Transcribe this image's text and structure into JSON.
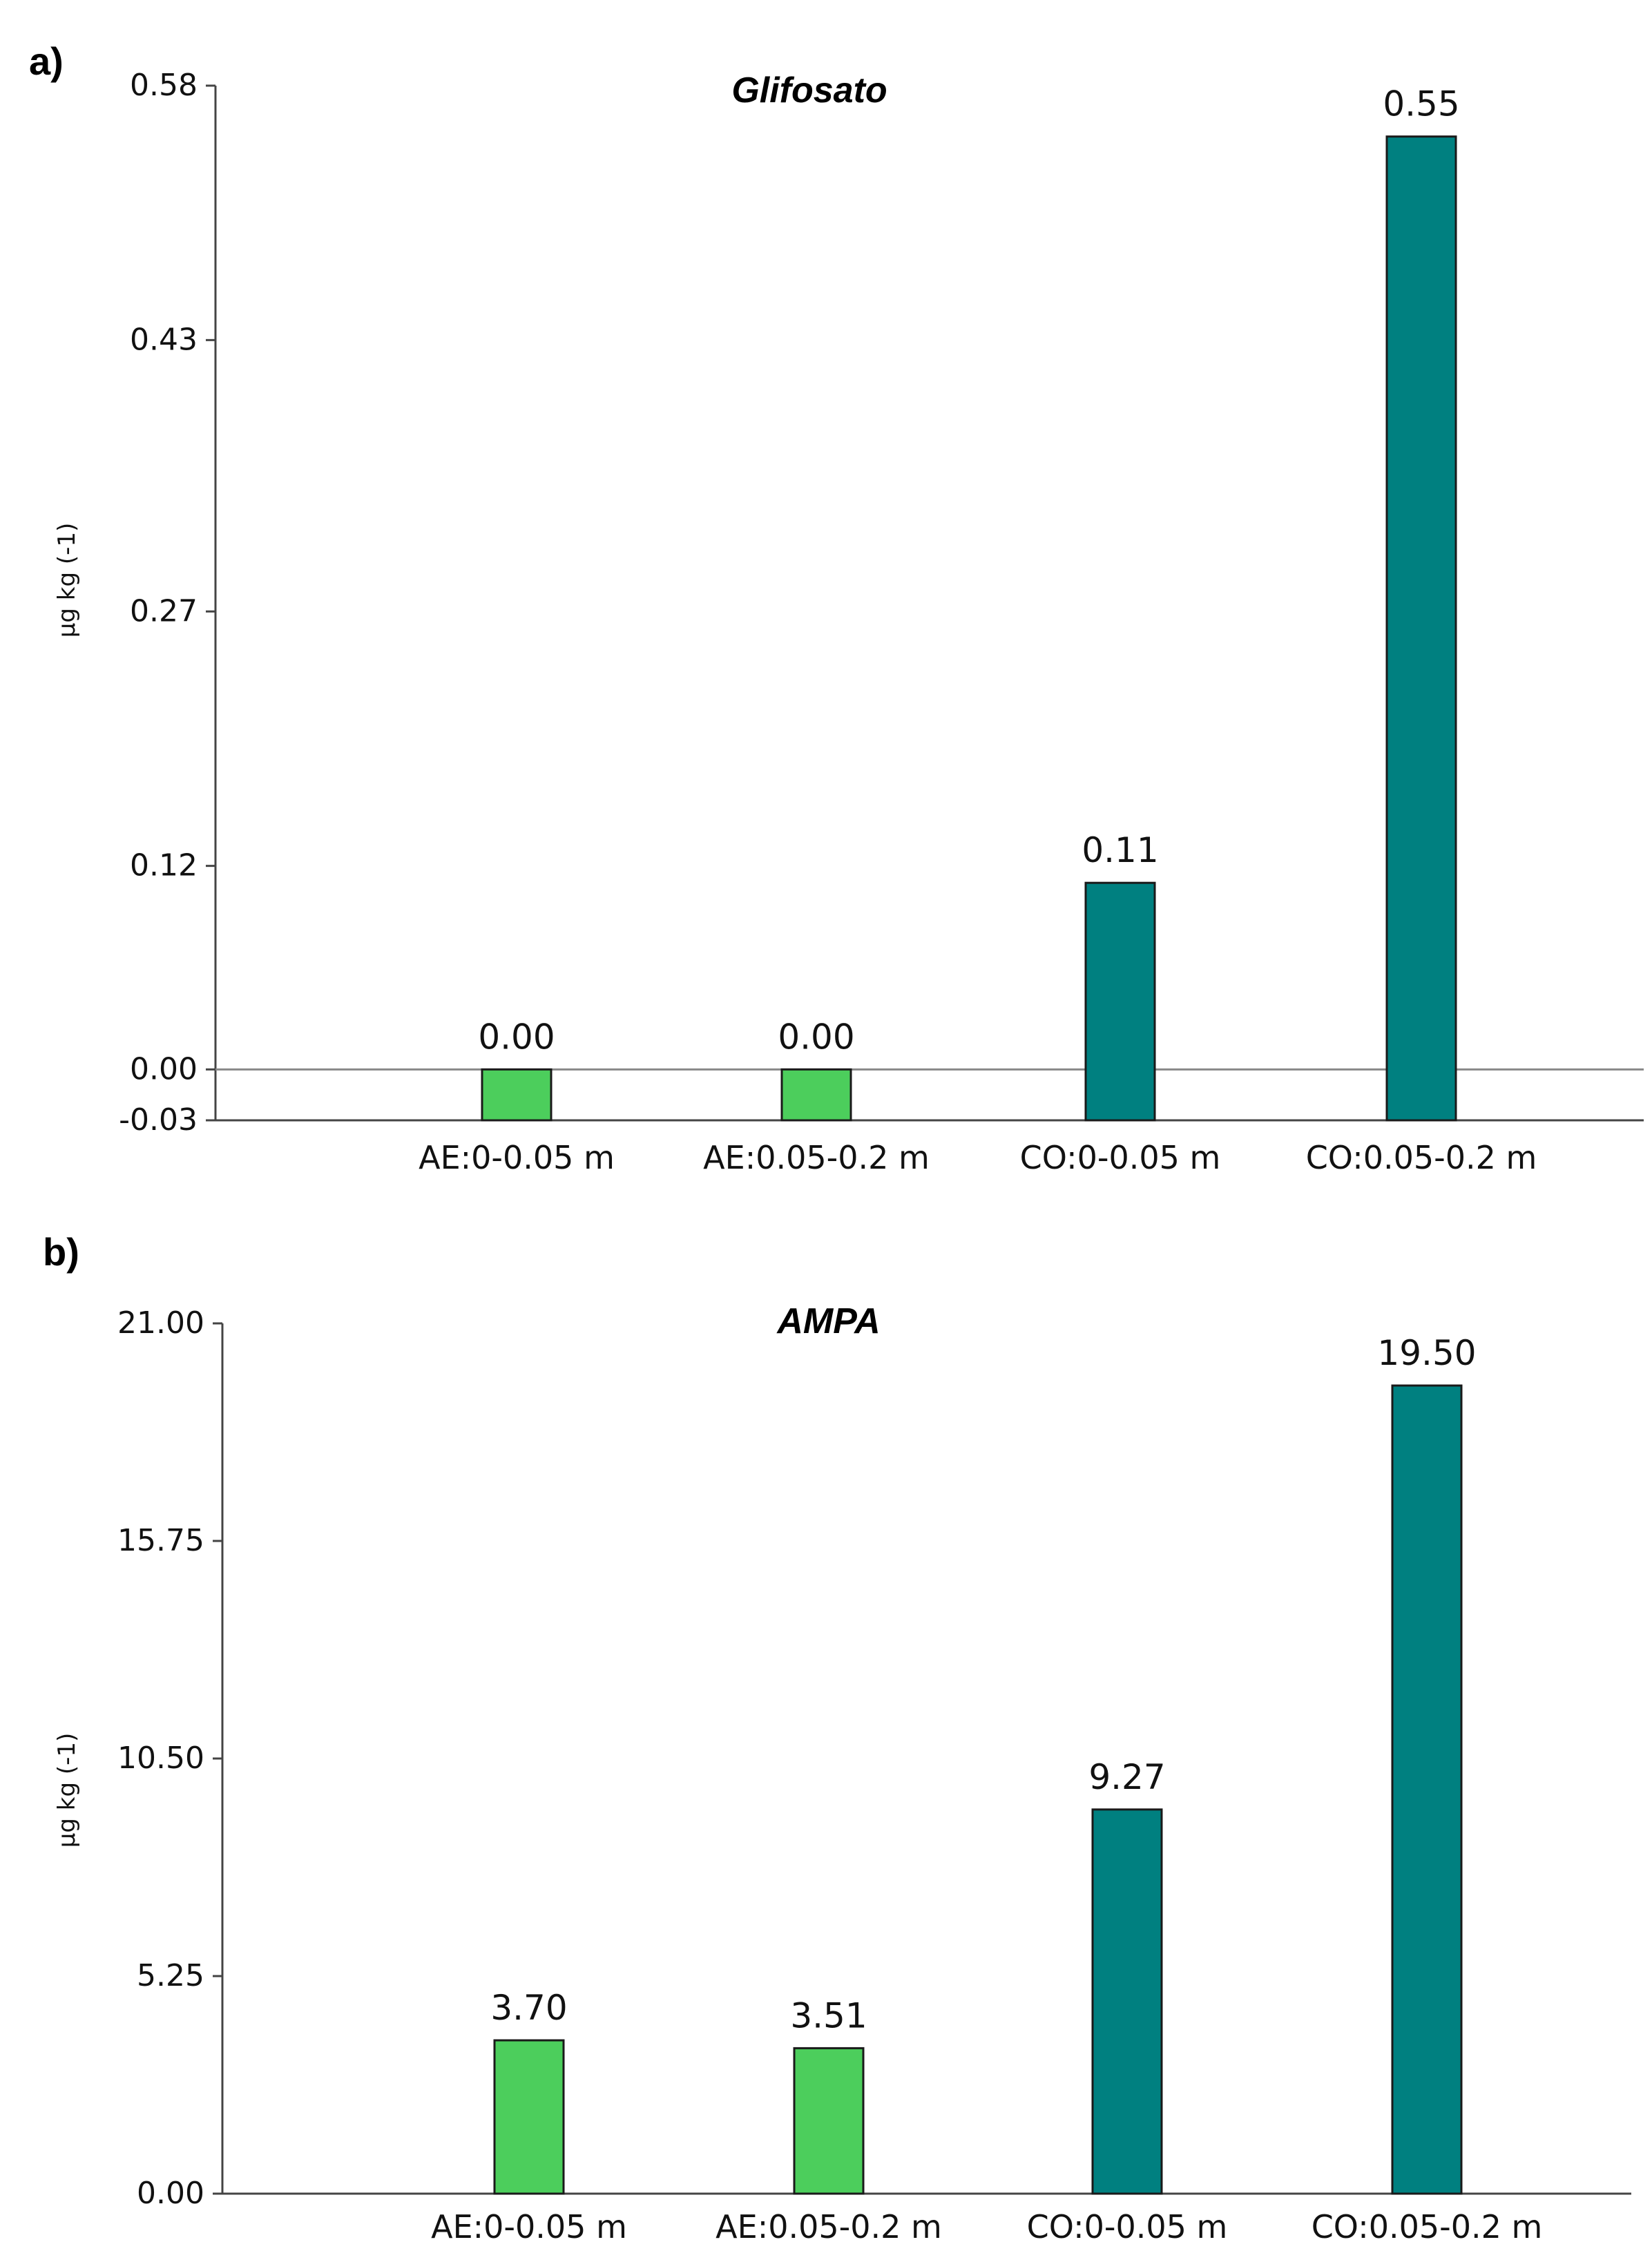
{
  "chart_data": [
    {
      "type": "bar",
      "panel_label": "a)",
      "title": "Glifosato",
      "ylabel": "µg kg (-1)",
      "xlabel": "",
      "categories": [
        "AE:0-0.05 m",
        "AE:0.05-0.2 m",
        "CO:0-0.05 m",
        "CO:0.05-0.2 m"
      ],
      "values": [
        0.0,
        0.0,
        0.11,
        0.55
      ],
      "value_labels": [
        "0.00",
        "0.00",
        "0.11",
        "0.55"
      ],
      "bar_colors": [
        "#4cce5c",
        "#4cce5c",
        "#008080",
        "#008080"
      ],
      "yticks": [
        -0.03,
        0.0,
        0.12,
        0.27,
        0.43,
        0.58
      ],
      "ytick_labels": [
        "-0.03",
        "0.00",
        "0.12",
        "0.27",
        "0.43",
        "0.58"
      ],
      "ylim": [
        -0.03,
        0.58
      ],
      "zero_line": true,
      "grid": false,
      "legend": "none"
    },
    {
      "type": "bar",
      "panel_label": "b)",
      "title": "AMPA",
      "ylabel": "µg kg (-1)",
      "xlabel": "",
      "categories": [
        "AE:0-0.05 m",
        "AE:0.05-0.2 m",
        "CO:0-0.05 m",
        "CO:0.05-0.2 m"
      ],
      "values": [
        3.7,
        3.51,
        9.27,
        19.5
      ],
      "value_labels": [
        "3.70",
        "3.51",
        "9.27",
        "19.50"
      ],
      "bar_colors": [
        "#4cce5c",
        "#4cce5c",
        "#008080",
        "#008080"
      ],
      "yticks": [
        0.0,
        5.25,
        10.5,
        15.75,
        21.0
      ],
      "ytick_labels": [
        "0.00",
        "5.25",
        "10.50",
        "15.75",
        "21.00"
      ],
      "ylim": [
        0.0,
        21.0
      ],
      "zero_line": false,
      "grid": false,
      "legend": "none"
    }
  ]
}
